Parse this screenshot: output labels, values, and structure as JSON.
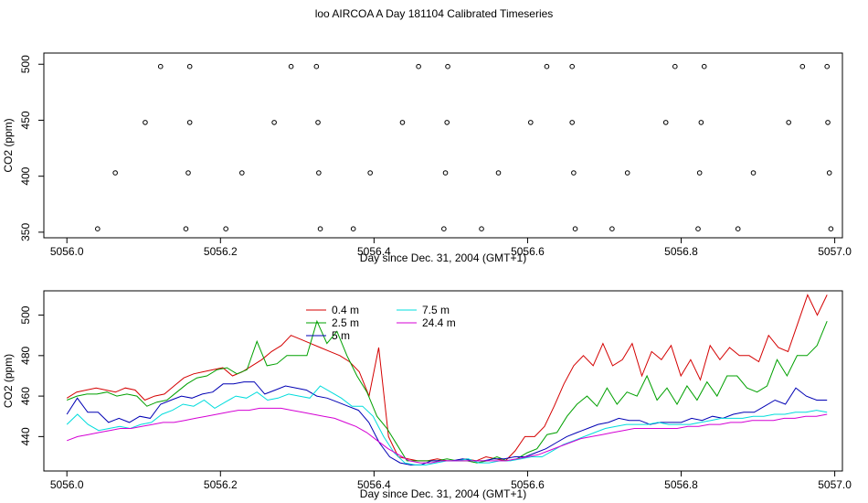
{
  "page_title": "loo AIRCOA A  Day 181104  Calibrated Timeseries",
  "chart_data": [
    {
      "type": "scatter",
      "panel": "top",
      "xlabel": "Day since Dec. 31, 2004 (GMT+1)",
      "ylabel": "CO2 (ppm)",
      "xlim": [
        5055.97,
        5057.01
      ],
      "ylim": [
        345,
        510
      ],
      "x_ticks": [
        "5056.0",
        "5056.2",
        "5056.4",
        "5056.6",
        "5056.8",
        "5057.0"
      ],
      "y_ticks": [
        "350",
        "400",
        "450",
        "500"
      ],
      "grid": false,
      "marker_points": [
        [
          5056.04,
          353
        ],
        [
          5056.063,
          403
        ],
        [
          5056.102,
          448
        ],
        [
          5056.122,
          498
        ],
        [
          5056.155,
          353
        ],
        [
          5056.158,
          403
        ],
        [
          5056.16,
          448
        ],
        [
          5056.16,
          498
        ],
        [
          5056.207,
          353
        ],
        [
          5056.228,
          403
        ],
        [
          5056.27,
          448
        ],
        [
          5056.292,
          498
        ],
        [
          5056.325,
          498
        ],
        [
          5056.327,
          448
        ],
        [
          5056.328,
          403
        ],
        [
          5056.33,
          353
        ],
        [
          5056.373,
          353
        ],
        [
          5056.395,
          403
        ],
        [
          5056.437,
          448
        ],
        [
          5056.458,
          498
        ],
        [
          5056.491,
          353
        ],
        [
          5056.493,
          403
        ],
        [
          5056.495,
          448
        ],
        [
          5056.496,
          498
        ],
        [
          5056.54,
          353
        ],
        [
          5056.562,
          403
        ],
        [
          5056.604,
          448
        ],
        [
          5056.625,
          498
        ],
        [
          5056.658,
          448
        ],
        [
          5056.658,
          498
        ],
        [
          5056.66,
          403
        ],
        [
          5056.662,
          353
        ],
        [
          5056.71,
          353
        ],
        [
          5056.73,
          403
        ],
        [
          5056.78,
          448
        ],
        [
          5056.792,
          498
        ],
        [
          5056.822,
          353
        ],
        [
          5056.824,
          403
        ],
        [
          5056.826,
          448
        ],
        [
          5056.83,
          498
        ],
        [
          5056.874,
          353
        ],
        [
          5056.894,
          403
        ],
        [
          5056.94,
          448
        ],
        [
          5056.958,
          498
        ],
        [
          5056.99,
          498
        ],
        [
          5056.991,
          448
        ],
        [
          5056.993,
          403
        ],
        [
          5056.995,
          353
        ]
      ]
    },
    {
      "type": "line",
      "panel": "bottom",
      "xlabel": "Day since Dec. 31, 2004 (GMT+1)",
      "ylabel": "CO2 (ppm)",
      "xlim": [
        5055.97,
        5057.01
      ],
      "ylim": [
        423,
        512
      ],
      "x_ticks": [
        "5056.0",
        "5056.2",
        "5056.4",
        "5056.6",
        "5056.8",
        "5057.0"
      ],
      "y_ticks": [
        "440",
        "460",
        "480",
        "500"
      ],
      "grid": false,
      "legend_position": "top-center",
      "series": [
        {
          "name": "0.4 m",
          "color": "#d40000",
          "values": [
            459,
            462,
            463,
            464,
            463,
            462,
            464,
            463,
            458,
            460,
            461,
            465,
            469,
            471,
            472,
            473,
            474,
            470,
            472,
            475,
            478,
            482,
            485,
            490,
            488,
            486,
            484,
            482,
            480,
            477,
            472,
            460,
            484,
            440,
            430,
            429,
            428,
            428,
            429,
            428,
            428,
            429,
            428,
            430,
            429,
            428,
            433,
            440,
            440,
            445,
            455,
            466,
            475,
            480,
            475,
            486,
            475,
            478,
            486,
            470,
            482,
            478,
            485,
            470,
            478,
            468,
            485,
            478,
            484,
            480,
            480,
            477,
            490,
            484,
            482,
            496,
            510,
            500,
            510
          ]
        },
        {
          "name": "2.5 m",
          "color": "#00a000",
          "values": [
            458,
            460,
            461,
            461,
            462,
            460,
            461,
            460,
            455,
            457,
            458,
            462,
            466,
            469,
            470,
            473,
            474,
            471,
            473,
            487,
            475,
            476,
            480,
            480,
            480,
            497,
            486,
            492,
            480,
            470,
            462,
            450,
            444,
            436,
            428,
            428,
            428,
            428,
            429,
            428,
            428,
            427,
            428,
            430,
            428,
            429,
            432,
            434,
            441,
            442,
            450,
            456,
            460,
            455,
            464,
            456,
            462,
            460,
            470,
            458,
            464,
            456,
            465,
            458,
            467,
            460,
            470,
            470,
            464,
            462,
            465,
            478,
            470,
            480,
            480,
            485,
            497
          ]
        },
        {
          "name": "5 m",
          "color": "#0000b4",
          "values": [
            451,
            459,
            452,
            452,
            447,
            449,
            447,
            450,
            449,
            456,
            458,
            460,
            459,
            461,
            462,
            466,
            466,
            467,
            467,
            461,
            463,
            465,
            464,
            463,
            460,
            459,
            457,
            455,
            453,
            447,
            437,
            430,
            427,
            426,
            426,
            428,
            428,
            428,
            429,
            428,
            428,
            429,
            429,
            430,
            430,
            432,
            434,
            437,
            440,
            442,
            444,
            446,
            447,
            449,
            448,
            448,
            446,
            447,
            447,
            447,
            449,
            448,
            450,
            449,
            451,
            452,
            452,
            455,
            458,
            456,
            464,
            460,
            458,
            458
          ]
        },
        {
          "name": "7.5 m",
          "color": "#00dcdc",
          "values": [
            446,
            451,
            446,
            443,
            444,
            445,
            444,
            446,
            447,
            451,
            453,
            456,
            455,
            458,
            454,
            457,
            460,
            459,
            462,
            458,
            459,
            461,
            460,
            459,
            465,
            462,
            459,
            455,
            455,
            450,
            440,
            432,
            427,
            426,
            426,
            427,
            428,
            428,
            429,
            427,
            427,
            428,
            428,
            429,
            430,
            430,
            433,
            436,
            438,
            440,
            442,
            444,
            445,
            446,
            446,
            446,
            447,
            446,
            446,
            446,
            447,
            448,
            449,
            449,
            449,
            450,
            450,
            451,
            451,
            452,
            452,
            453,
            452
          ]
        },
        {
          "name": "24.4 m",
          "color": "#d400d4",
          "values": [
            438,
            440,
            441,
            442,
            443,
            444,
            444,
            445,
            446,
            447,
            447,
            448,
            449,
            450,
            451,
            452,
            453,
            453,
            454,
            454,
            454,
            453,
            452,
            451,
            450,
            449,
            447,
            445,
            442,
            438,
            434,
            431,
            428,
            427,
            427,
            428,
            428,
            428,
            428,
            428,
            428,
            428,
            429,
            430,
            431,
            433,
            435,
            437,
            439,
            440,
            441,
            442,
            443,
            444,
            444,
            444,
            444,
            444,
            445,
            445,
            446,
            446,
            447,
            447,
            448,
            448,
            448,
            449,
            449,
            450,
            450,
            451
          ]
        }
      ]
    }
  ]
}
